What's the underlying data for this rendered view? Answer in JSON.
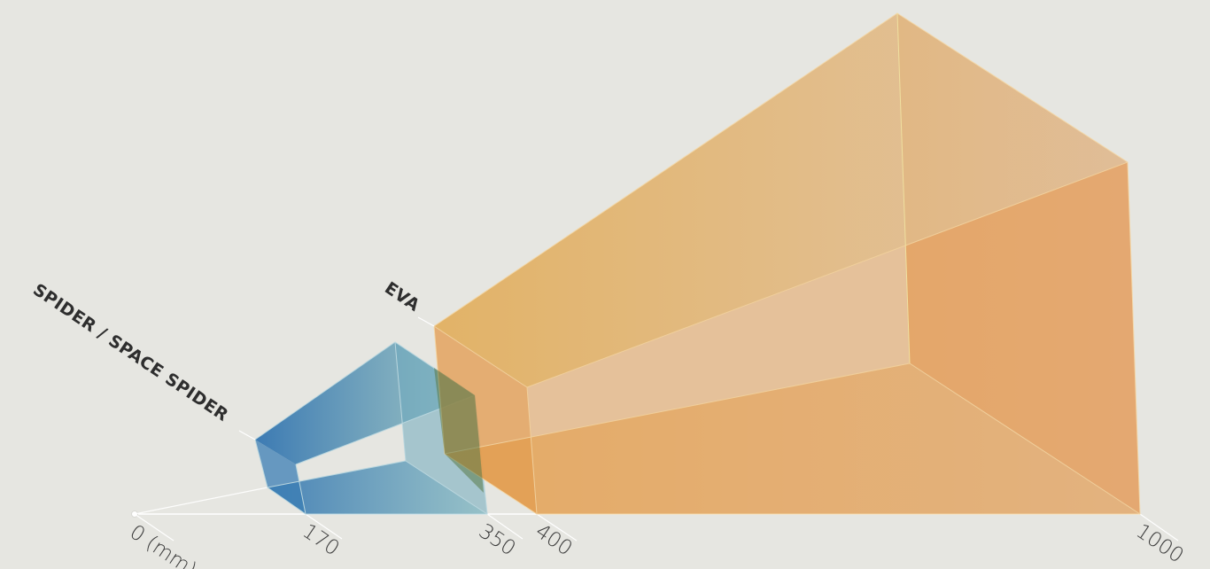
{
  "colors": {
    "background": "#e6e6e1",
    "eva": "#e3a24f",
    "spider": "#2a6fae",
    "axis": "#ffffff",
    "text": "#3c3c3c"
  },
  "devices": {
    "spider": {
      "label": "SPIDER / SPACE SPIDER",
      "near_mm": 170,
      "far_mm": 350
    },
    "eva": {
      "label": "EVA",
      "near_mm": 400,
      "far_mm": 1000
    }
  },
  "axis": {
    "ticks": [
      "0 (mm)",
      "170",
      "350",
      "400",
      "1000"
    ]
  }
}
